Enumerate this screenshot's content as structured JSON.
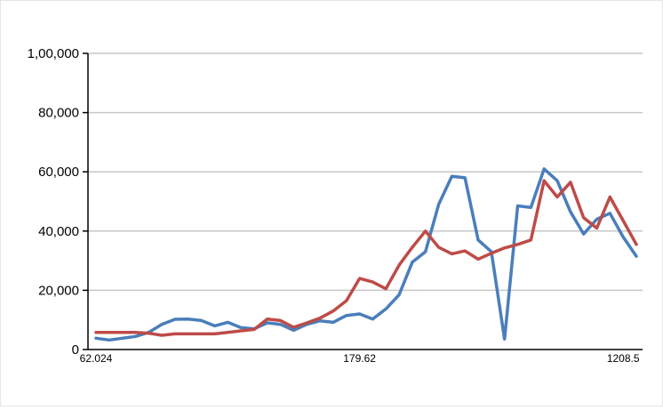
{
  "chart_data": {
    "type": "line",
    "title": "",
    "xlabel": "",
    "ylabel": "",
    "x_tick_labels": [
      {
        "index": 0,
        "label": "62.024"
      },
      {
        "index": 20,
        "label": "179.62"
      },
      {
        "index": 40,
        "label": "1208.5"
      }
    ],
    "y_ticks": [
      {
        "value": 0,
        "label": "0"
      },
      {
        "value": 20000,
        "label": "20,000"
      },
      {
        "value": 40000,
        "label": "40,000"
      },
      {
        "value": 60000,
        "label": "60,000"
      },
      {
        "value": 80000,
        "label": "80,000"
      },
      {
        "value": 100000,
        "label": "1,00,000"
      }
    ],
    "ylim": [
      0,
      100000
    ],
    "grid": true,
    "legend": "none",
    "series": [
      {
        "color": "#4a7ebb",
        "values": [
          3800,
          3200,
          3800,
          4400,
          5800,
          8500,
          10200,
          10300,
          9800,
          8000,
          9200,
          7400,
          7000,
          9000,
          8500,
          6500,
          8500,
          9700,
          9200,
          11500,
          12000,
          10300,
          13700,
          18500,
          29500,
          33000,
          49000,
          58500,
          58000,
          37000,
          33000,
          3500,
          48500,
          48000,
          61000,
          57000,
          46500,
          39000,
          44000,
          46000,
          38000,
          31500
        ]
      },
      {
        "color": "#be4b48",
        "values": [
          5800,
          5800,
          5800,
          5800,
          5500,
          4800,
          5300,
          5300,
          5300,
          5300,
          5800,
          6300,
          6800,
          10300,
          9800,
          7500,
          9000,
          10600,
          13000,
          16500,
          24000,
          22800,
          20500,
          28500,
          34500,
          40000,
          34500,
          32300,
          33300,
          30500,
          32500,
          34300,
          35500,
          37000,
          57000,
          51500,
          56500,
          44500,
          41000,
          51500,
          43500,
          35500
        ]
      }
    ]
  }
}
